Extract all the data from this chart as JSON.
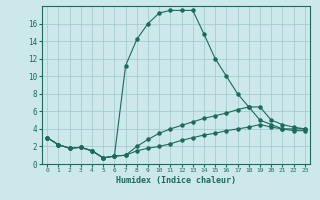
{
  "xlabel": "Humidex (Indice chaleur)",
  "bg_color": "#cce8ea",
  "grid_color": "#a0c8c8",
  "line_color": "#1a6b5a",
  "xlim": [
    -0.5,
    23.5
  ],
  "ylim": [
    0,
    18
  ],
  "xticks": [
    0,
    1,
    2,
    3,
    4,
    5,
    6,
    7,
    8,
    9,
    10,
    11,
    12,
    13,
    14,
    15,
    16,
    17,
    18,
    19,
    20,
    21,
    22,
    23
  ],
  "yticks": [
    0,
    2,
    4,
    6,
    8,
    10,
    12,
    14,
    16
  ],
  "curve1_x": [
    0,
    1,
    2,
    3,
    4,
    5,
    6,
    7,
    8,
    9,
    10,
    11,
    12,
    13,
    14,
    15,
    16,
    17,
    18,
    19,
    20,
    21,
    22,
    23
  ],
  "curve1_y": [
    3.0,
    2.2,
    1.8,
    1.9,
    1.5,
    0.7,
    0.9,
    11.2,
    14.2,
    16.0,
    17.2,
    17.5,
    17.5,
    17.5,
    14.8,
    12.0,
    10.0,
    8.0,
    6.5,
    5.0,
    4.5,
    4.0,
    4.0,
    4.0
  ],
  "curve2_x": [
    0,
    1,
    2,
    3,
    4,
    5,
    6,
    7,
    8,
    9,
    10,
    11,
    12,
    13,
    14,
    15,
    16,
    17,
    18,
    19,
    20,
    21,
    22,
    23
  ],
  "curve2_y": [
    3.0,
    2.2,
    1.8,
    1.9,
    1.5,
    0.7,
    0.9,
    1.0,
    2.0,
    2.8,
    3.5,
    4.0,
    4.4,
    4.8,
    5.2,
    5.5,
    5.8,
    6.2,
    6.5,
    6.5,
    5.0,
    4.5,
    4.2,
    4.0
  ],
  "curve3_x": [
    0,
    1,
    2,
    3,
    4,
    5,
    6,
    7,
    8,
    9,
    10,
    11,
    12,
    13,
    14,
    15,
    16,
    17,
    18,
    19,
    20,
    21,
    22,
    23
  ],
  "curve3_y": [
    3.0,
    2.2,
    1.8,
    1.9,
    1.5,
    0.7,
    0.9,
    1.0,
    1.5,
    1.8,
    2.0,
    2.3,
    2.7,
    3.0,
    3.3,
    3.5,
    3.8,
    4.0,
    4.2,
    4.5,
    4.2,
    4.0,
    3.8,
    3.8
  ]
}
